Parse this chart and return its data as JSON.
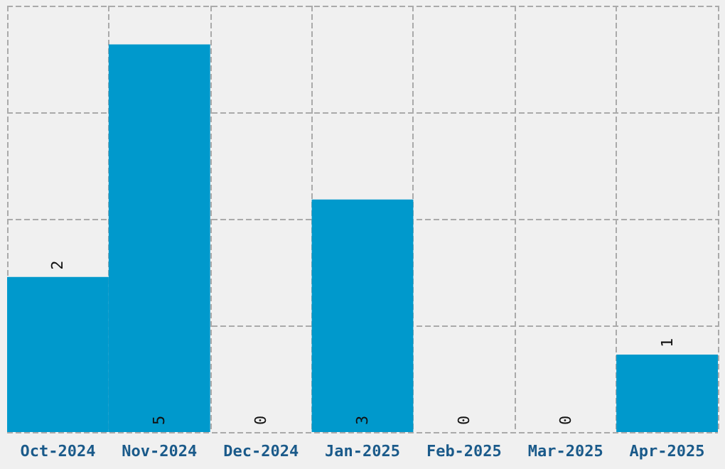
{
  "chart_data": {
    "type": "bar",
    "categories": [
      "Oct-2024",
      "Nov-2024",
      "Dec-2024",
      "Jan-2025",
      "Feb-2025",
      "Mar-2025",
      "Apr-2025"
    ],
    "values": [
      2,
      5,
      0,
      3,
      0,
      0,
      1
    ],
    "color": "#0099cc",
    "data_labels": true,
    "grid": true,
    "tick_labels": "x",
    "ylim": [
      0,
      5.5
    ],
    "yticks": [
      {
        "value": 0,
        "label": null
      },
      {
        "value": 1.375,
        "label": null
      },
      {
        "value": 2.75,
        "label": null
      },
      {
        "value": 4.125,
        "label": null
      },
      {
        "value": 5.5,
        "label": null
      }
    ]
  }
}
